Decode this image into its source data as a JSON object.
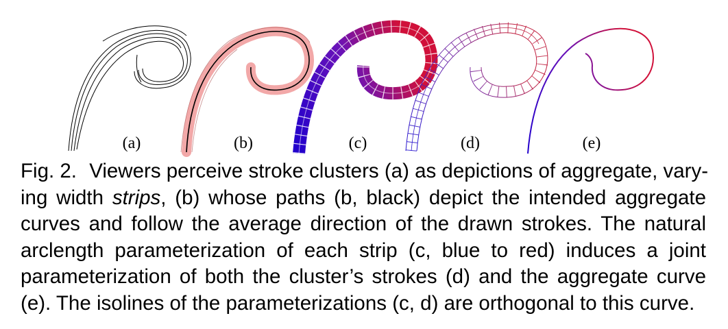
{
  "figure": {
    "panels": [
      {
        "id": "a",
        "label": "(a)"
      },
      {
        "id": "b",
        "label": "(b)"
      },
      {
        "id": "c",
        "label": "(c)"
      },
      {
        "id": "d",
        "label": "(d)"
      },
      {
        "id": "e",
        "label": "(e)"
      }
    ],
    "colors": {
      "stroke_black": "#000000",
      "strip_fill_pink": "#f2a8a8",
      "gradient_start_blue": "#2200cc",
      "gradient_end_red": "#d0103a"
    }
  },
  "caption": {
    "fig_number": "Fig. 2.",
    "lines": [
      {
        "pre": "Viewers perceive stroke clusters (a) as depictions of aggregate, vary-"
      },
      {
        "pre": "ing width ",
        "em": "strips",
        "post": ", (b) whose paths (b, black) depict the intended aggregate"
      },
      {
        "pre": "curves and follow the average direction of the drawn strokes. The natural"
      },
      {
        "pre": "arclength parameterization of each strip (c, blue to red) induces a joint"
      },
      {
        "pre": "parameterization of both the cluster’s strokes (d) and the aggregate curve"
      },
      {
        "pre": "(e). The isolines of the parameterizations (c, d) are orthogonal to this curve."
      }
    ]
  }
}
